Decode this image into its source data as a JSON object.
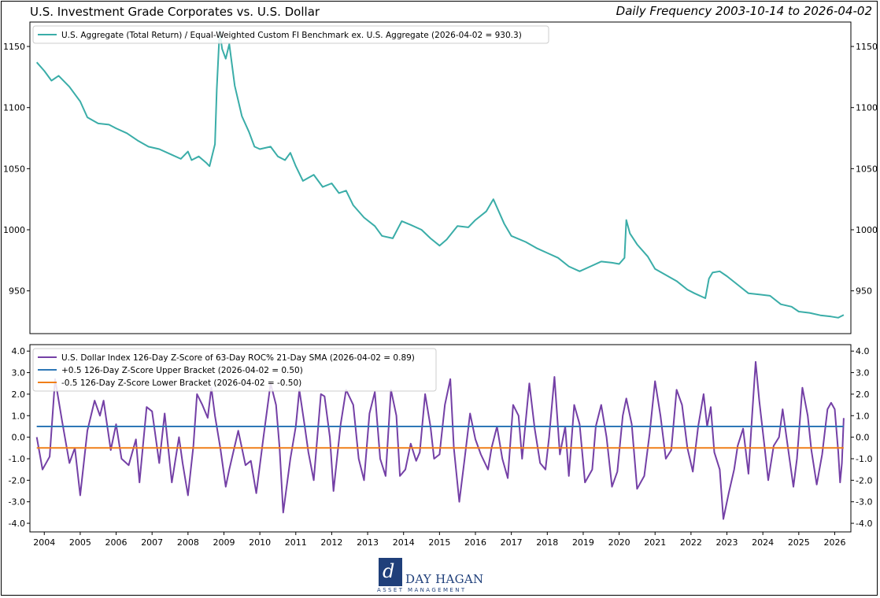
{
  "header": {
    "title": "U.S. Investment Grade Corporates vs. U.S. Dollar",
    "subtitle": "Daily Frequency 2003-10-14 to 2026-04-02"
  },
  "logo": {
    "mark": "d",
    "name": "DAY HAGAN",
    "sub": "ASSET MANAGEMENT"
  },
  "chart_data": [
    {
      "type": "line",
      "ylim": [
        915,
        1170
      ],
      "yticks": [
        950,
        1000,
        1050,
        1100,
        1150
      ],
      "legend_position": "top-left",
      "grid": false,
      "series": [
        {
          "name": "U.S. Aggregate (Total Return) / Equal-Weighted Custom FI Benchmark ex. U.S. Aggregate (2026-04-02 = 930.3)",
          "color": "#3aada8",
          "points": [
            [
              2003.79,
              1137
            ],
            [
              2004.0,
              1130
            ],
            [
              2004.2,
              1122
            ],
            [
              2004.4,
              1126
            ],
            [
              2004.7,
              1117
            ],
            [
              2005.0,
              1105
            ],
            [
              2005.2,
              1092
            ],
            [
              2005.5,
              1087
            ],
            [
              2005.8,
              1086
            ],
            [
              2006.0,
              1083
            ],
            [
              2006.3,
              1079
            ],
            [
              2006.6,
              1073
            ],
            [
              2006.9,
              1068
            ],
            [
              2007.2,
              1066
            ],
            [
              2007.5,
              1062
            ],
            [
              2007.8,
              1058
            ],
            [
              2008.0,
              1064
            ],
            [
              2008.1,
              1057
            ],
            [
              2008.3,
              1060
            ],
            [
              2008.5,
              1055
            ],
            [
              2008.6,
              1052
            ],
            [
              2008.75,
              1070
            ],
            [
              2008.8,
              1115
            ],
            [
              2008.88,
              1163
            ],
            [
              2008.95,
              1148
            ],
            [
              2009.05,
              1140
            ],
            [
              2009.15,
              1152
            ],
            [
              2009.3,
              1118
            ],
            [
              2009.5,
              1093
            ],
            [
              2009.7,
              1080
            ],
            [
              2009.85,
              1068
            ],
            [
              2010.0,
              1066
            ],
            [
              2010.3,
              1068
            ],
            [
              2010.5,
              1060
            ],
            [
              2010.7,
              1057
            ],
            [
              2010.85,
              1063
            ],
            [
              2011.0,
              1052
            ],
            [
              2011.2,
              1040
            ],
            [
              2011.5,
              1045
            ],
            [
              2011.75,
              1035
            ],
            [
              2012.0,
              1038
            ],
            [
              2012.2,
              1030
            ],
            [
              2012.4,
              1032
            ],
            [
              2012.6,
              1020
            ],
            [
              2012.9,
              1010
            ],
            [
              2013.2,
              1003
            ],
            [
              2013.4,
              995
            ],
            [
              2013.7,
              993
            ],
            [
              2013.95,
              1007
            ],
            [
              2014.2,
              1004
            ],
            [
              2014.5,
              1000
            ],
            [
              2014.75,
              993
            ],
            [
              2015.0,
              987
            ],
            [
              2015.2,
              992
            ],
            [
              2015.5,
              1003
            ],
            [
              2015.8,
              1002
            ],
            [
              2016.0,
              1008
            ],
            [
              2016.3,
              1015
            ],
            [
              2016.5,
              1025
            ],
            [
              2016.8,
              1005
            ],
            [
              2017.0,
              995
            ],
            [
              2017.4,
              990
            ],
            [
              2017.7,
              985
            ],
            [
              2018.0,
              981
            ],
            [
              2018.3,
              977
            ],
            [
              2018.6,
              970
            ],
            [
              2018.9,
              966
            ],
            [
              2019.2,
              970
            ],
            [
              2019.5,
              974
            ],
            [
              2019.8,
              973
            ],
            [
              2020.0,
              972
            ],
            [
              2020.15,
              977
            ],
            [
              2020.2,
              1008
            ],
            [
              2020.3,
              997
            ],
            [
              2020.5,
              988
            ],
            [
              2020.8,
              978
            ],
            [
              2021.0,
              968
            ],
            [
              2021.3,
              963
            ],
            [
              2021.6,
              958
            ],
            [
              2021.9,
              951
            ],
            [
              2022.1,
              948
            ],
            [
              2022.4,
              944
            ],
            [
              2022.5,
              960
            ],
            [
              2022.6,
              965
            ],
            [
              2022.8,
              966
            ],
            [
              2023.0,
              962
            ],
            [
              2023.3,
              955
            ],
            [
              2023.6,
              948
            ],
            [
              2023.9,
              947
            ],
            [
              2024.2,
              946
            ],
            [
              2024.5,
              939
            ],
            [
              2024.8,
              937
            ],
            [
              2025.0,
              933
            ],
            [
              2025.3,
              932
            ],
            [
              2025.6,
              930
            ],
            [
              2025.9,
              929
            ],
            [
              2026.1,
              928
            ],
            [
              2026.25,
              930.3
            ]
          ]
        }
      ]
    },
    {
      "type": "line",
      "ylim": [
        -4.4,
        4.3
      ],
      "yticks": [
        -4.0,
        -3.0,
        -2.0,
        -1.0,
        0.0,
        1.0,
        2.0,
        3.0,
        4.0
      ],
      "xlabels": [
        "2004",
        "2005",
        "2006",
        "2007",
        "2008",
        "2009",
        "2010",
        "2011",
        "2012",
        "2013",
        "2014",
        "2015",
        "2016",
        "2017",
        "2018",
        "2019",
        "2020",
        "2021",
        "2022",
        "2023",
        "2024",
        "2025",
        "2026"
      ],
      "legend_position": "top-left",
      "grid": false,
      "series": [
        {
          "name": "U.S. Dollar Index 126-Day Z-Score of 63-Day ROC% 21-Day SMA (2026-04-02 = 0.89)",
          "color": "#7440a6",
          "points": [
            [
              2003.79,
              0.0
            ],
            [
              2003.95,
              -1.5
            ],
            [
              2004.15,
              -0.9
            ],
            [
              2004.3,
              2.7
            ],
            [
              2004.5,
              0.7
            ],
            [
              2004.7,
              -1.2
            ],
            [
              2004.85,
              -0.5
            ],
            [
              2005.0,
              -2.7
            ],
            [
              2005.2,
              0.3
            ],
            [
              2005.4,
              1.7
            ],
            [
              2005.55,
              1.0
            ],
            [
              2005.65,
              1.7
            ],
            [
              2005.85,
              -0.6
            ],
            [
              2006.0,
              0.6
            ],
            [
              2006.15,
              -1.0
            ],
            [
              2006.35,
              -1.3
            ],
            [
              2006.55,
              -0.1
            ],
            [
              2006.65,
              -2.1
            ],
            [
              2006.85,
              1.4
            ],
            [
              2007.0,
              1.2
            ],
            [
              2007.2,
              -1.2
            ],
            [
              2007.35,
              1.1
            ],
            [
              2007.55,
              -2.1
            ],
            [
              2007.75,
              0.0
            ],
            [
              2007.85,
              -1.2
            ],
            [
              2008.0,
              -2.7
            ],
            [
              2008.15,
              -0.4
            ],
            [
              2008.25,
              2.0
            ],
            [
              2008.4,
              1.5
            ],
            [
              2008.55,
              0.9
            ],
            [
              2008.65,
              2.3
            ],
            [
              2008.75,
              1.0
            ],
            [
              2008.9,
              -0.5
            ],
            [
              2009.05,
              -2.3
            ],
            [
              2009.15,
              -1.5
            ],
            [
              2009.4,
              0.3
            ],
            [
              2009.6,
              -1.3
            ],
            [
              2009.75,
              -1.1
            ],
            [
              2009.9,
              -2.6
            ],
            [
              2010.1,
              0.0
            ],
            [
              2010.3,
              2.5
            ],
            [
              2010.45,
              1.5
            ],
            [
              2010.55,
              -0.5
            ],
            [
              2010.65,
              -3.5
            ],
            [
              2010.85,
              -1.0
            ],
            [
              2011.0,
              0.5
            ],
            [
              2011.1,
              2.2
            ],
            [
              2011.25,
              0.5
            ],
            [
              2011.35,
              -0.7
            ],
            [
              2011.5,
              -2.0
            ],
            [
              2011.7,
              2.0
            ],
            [
              2011.8,
              1.9
            ],
            [
              2011.95,
              0.0
            ],
            [
              2012.05,
              -2.5
            ],
            [
              2012.25,
              0.6
            ],
            [
              2012.4,
              2.2
            ],
            [
              2012.6,
              1.5
            ],
            [
              2012.75,
              -1.0
            ],
            [
              2012.9,
              -2.0
            ],
            [
              2013.05,
              1.1
            ],
            [
              2013.2,
              2.1
            ],
            [
              2013.35,
              -1.0
            ],
            [
              2013.5,
              -1.8
            ],
            [
              2013.65,
              2.2
            ],
            [
              2013.8,
              1.0
            ],
            [
              2013.9,
              -1.8
            ],
            [
              2014.05,
              -1.5
            ],
            [
              2014.2,
              -0.3
            ],
            [
              2014.35,
              -1.1
            ],
            [
              2014.45,
              -0.7
            ],
            [
              2014.6,
              2.0
            ],
            [
              2014.75,
              0.5
            ],
            [
              2014.85,
              -1.0
            ],
            [
              2015.0,
              -0.8
            ],
            [
              2015.15,
              1.5
            ],
            [
              2015.3,
              2.7
            ],
            [
              2015.4,
              -0.5
            ],
            [
              2015.55,
              -3.0
            ],
            [
              2015.7,
              -1.0
            ],
            [
              2015.85,
              1.1
            ],
            [
              2016.0,
              -0.1
            ],
            [
              2016.15,
              -0.8
            ],
            [
              2016.35,
              -1.5
            ],
            [
              2016.45,
              -0.5
            ],
            [
              2016.6,
              0.5
            ],
            [
              2016.75,
              -1.0
            ],
            [
              2016.9,
              -1.9
            ],
            [
              2017.05,
              1.5
            ],
            [
              2017.2,
              1.0
            ],
            [
              2017.3,
              -1.0
            ],
            [
              2017.5,
              2.5
            ],
            [
              2017.65,
              0.4
            ],
            [
              2017.8,
              -1.2
            ],
            [
              2017.95,
              -1.5
            ],
            [
              2018.05,
              0.0
            ],
            [
              2018.2,
              2.8
            ],
            [
              2018.35,
              -0.8
            ],
            [
              2018.5,
              0.5
            ],
            [
              2018.6,
              -1.8
            ],
            [
              2018.75,
              1.5
            ],
            [
              2018.9,
              0.6
            ],
            [
              2019.05,
              -2.1
            ],
            [
              2019.25,
              -1.5
            ],
            [
              2019.35,
              0.5
            ],
            [
              2019.5,
              1.5
            ],
            [
              2019.65,
              0.0
            ],
            [
              2019.8,
              -2.3
            ],
            [
              2019.95,
              -1.6
            ],
            [
              2020.1,
              1.0
            ],
            [
              2020.2,
              1.8
            ],
            [
              2020.35,
              0.6
            ],
            [
              2020.5,
              -2.4
            ],
            [
              2020.7,
              -1.8
            ],
            [
              2020.85,
              0.2
            ],
            [
              2021.0,
              2.6
            ],
            [
              2021.15,
              1.0
            ],
            [
              2021.3,
              -1.0
            ],
            [
              2021.45,
              -0.6
            ],
            [
              2021.6,
              2.2
            ],
            [
              2021.75,
              1.5
            ],
            [
              2021.9,
              -0.5
            ],
            [
              2022.05,
              -1.6
            ],
            [
              2022.2,
              0.5
            ],
            [
              2022.35,
              2.0
            ],
            [
              2022.45,
              0.5
            ],
            [
              2022.55,
              1.4
            ],
            [
              2022.65,
              -0.7
            ],
            [
              2022.8,
              -1.5
            ],
            [
              2022.9,
              -3.8
            ],
            [
              2023.05,
              -2.6
            ],
            [
              2023.2,
              -1.5
            ],
            [
              2023.3,
              -0.4
            ],
            [
              2023.45,
              0.4
            ],
            [
              2023.6,
              -1.7
            ],
            [
              2023.7,
              1.0
            ],
            [
              2023.8,
              3.5
            ],
            [
              2023.9,
              1.7
            ],
            [
              2024.05,
              -0.5
            ],
            [
              2024.15,
              -2.0
            ],
            [
              2024.3,
              -0.4
            ],
            [
              2024.45,
              0.0
            ],
            [
              2024.55,
              1.3
            ],
            [
              2024.7,
              -0.5
            ],
            [
              2024.85,
              -2.3
            ],
            [
              2024.95,
              -1.0
            ],
            [
              2025.1,
              2.3
            ],
            [
              2025.25,
              1.0
            ],
            [
              2025.35,
              -0.6
            ],
            [
              2025.5,
              -2.2
            ],
            [
              2025.65,
              -0.8
            ],
            [
              2025.8,
              1.3
            ],
            [
              2025.9,
              1.6
            ],
            [
              2026.0,
              1.3
            ],
            [
              2026.1,
              -0.7
            ],
            [
              2026.15,
              -2.1
            ],
            [
              2026.2,
              -1.2
            ],
            [
              2026.25,
              0.89
            ]
          ]
        },
        {
          "name": "+0.5 126-Day Z-Score Upper Bracket (2026-04-02 = 0.50)",
          "color": "#2e78b7",
          "constant": 0.5
        },
        {
          "name": "-0.5 126-Day Z-Score Lower Bracket (2026-04-02 = -0.50)",
          "color": "#f07f19",
          "constant": -0.5
        }
      ]
    }
  ]
}
